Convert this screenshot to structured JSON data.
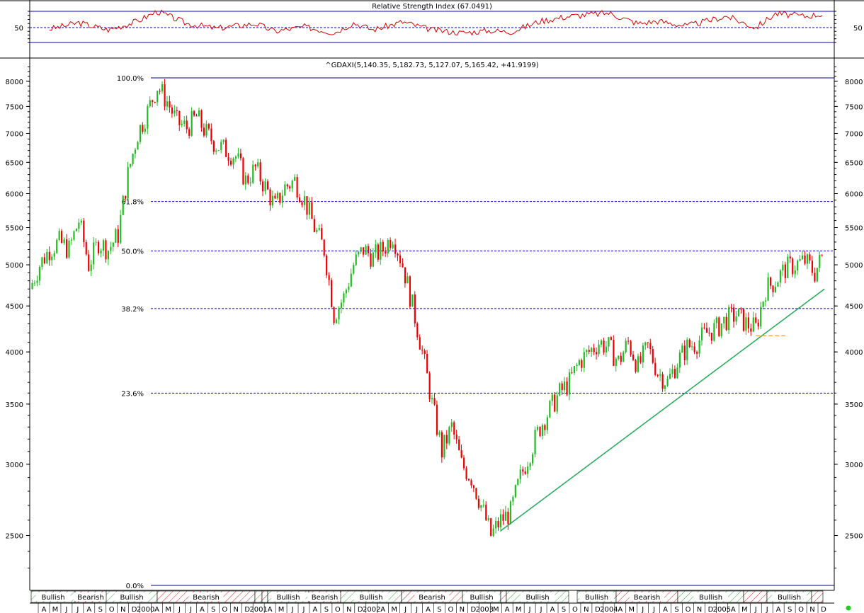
{
  "chart_data": [
    {
      "type": "line",
      "title": "Relative Strength Index (67.0491)",
      "y_tick_labels": [
        "50"
      ],
      "reference_levels": [
        70,
        50,
        30
      ],
      "colors": {
        "line": "#dd0000",
        "bands": "#0000cc",
        "mid": "#0000cc"
      },
      "x": [
        "1999-04",
        "1999-07",
        "1999-10",
        "2000-01",
        "2000-03",
        "2000-06",
        "2000-09",
        "2001-01",
        "2001-03",
        "2001-06",
        "2001-09",
        "2001-11",
        "2002-01",
        "2002-04",
        "2002-07",
        "2002-10",
        "2003-01",
        "2003-03",
        "2003-06",
        "2003-09",
        "2004-01",
        "2004-04",
        "2004-06",
        "2004-09",
        "2005-01",
        "2005-04",
        "2005-06",
        "2005-09",
        "2005-11"
      ],
      "values": [
        48,
        56,
        47,
        58,
        70,
        55,
        49,
        55,
        45,
        51,
        43,
        56,
        47,
        57,
        47,
        43,
        46,
        44,
        58,
        64,
        68,
        55,
        58,
        52,
        64,
        50,
        67,
        64,
        67
      ]
    },
    {
      "type": "line",
      "subtype": "candlestick",
      "title": "^GDAXI(5,140.35, 5,182.73, 5,127.07, 5,165.42, +41.9199)",
      "y_scale": "log",
      "ylim": [
        2200,
        8400
      ],
      "y_tick_labels": [
        "8000",
        "7500",
        "7000",
        "6500",
        "6000",
        "5500",
        "5000",
        "4500",
        "4000",
        "3500",
        "3000",
        "2500"
      ],
      "fibonacci_levels": [
        {
          "label": "100.0%",
          "value": 8070
        },
        {
          "label": "61.8%",
          "value": 5880
        },
        {
          "label": "50.0%",
          "value": 5180
        },
        {
          "label": "38.2%",
          "value": 4470
        },
        {
          "label": "23.6%",
          "value": 3600
        },
        {
          "label": "0.0%",
          "value": 2200
        }
      ],
      "colors": {
        "up": "#22bb22",
        "down": "#ee0000",
        "fib_line": "#0000cc",
        "trendline": "#22aa55",
        "support_dash": "#ff9933"
      },
      "trendline": [
        {
          "date": "2003-02",
          "value": 2530
        },
        {
          "date": "2005-11",
          "value": 4700
        }
      ],
      "support_dash": {
        "date_start": "2005-04",
        "date_end": "2005-07",
        "value": 4170
      },
      "series": [
        {
          "x": [
            "1999-02",
            "1999-03",
            "1999-04",
            "1999-05",
            "1999-06",
            "1999-07",
            "1999-08",
            "1999-09",
            "1999-10",
            "1999-11",
            "1999-12",
            "2000-01",
            "2000-02",
            "2000-03",
            "2000-04",
            "2000-05",
            "2000-06",
            "2000-07",
            "2000-08",
            "2000-09",
            "2000-10",
            "2000-11",
            "2000-12",
            "2001-01",
            "2001-02",
            "2001-03",
            "2001-04",
            "2001-05",
            "2001-06",
            "2001-07",
            "2001-08",
            "2001-09",
            "2001-10",
            "2001-11",
            "2001-12",
            "2002-01",
            "2002-02",
            "2002-03",
            "2002-04",
            "2002-05",
            "2002-06",
            "2002-07",
            "2002-08",
            "2002-09",
            "2002-10",
            "2002-11",
            "2002-12",
            "2003-01",
            "2003-02",
            "2003-03",
            "2003-04",
            "2003-05",
            "2003-06",
            "2003-07",
            "2003-08",
            "2003-09",
            "2003-10",
            "2003-11",
            "2003-12",
            "2004-01",
            "2004-02",
            "2004-03",
            "2004-04",
            "2004-05",
            "2004-06",
            "2004-07",
            "2004-08",
            "2004-09",
            "2004-10",
            "2004-11",
            "2004-12",
            "2005-01",
            "2005-02",
            "2005-03",
            "2005-04",
            "2005-05",
            "2005-06",
            "2005-07",
            "2005-08",
            "2005-09",
            "2005-10",
            "2005-11"
          ],
          "values": [
            4700,
            5000,
            5200,
            5300,
            5200,
            5600,
            5000,
            5300,
            5200,
            5400,
            6300,
            7000,
            7400,
            7900,
            7600,
            7200,
            7100,
            7300,
            7000,
            6800,
            6700,
            6600,
            6200,
            6400,
            6100,
            5800,
            6100,
            6200,
            5900,
            5500,
            5200,
            4400,
            4600,
            5000,
            5200,
            5100,
            5200,
            5400,
            5000,
            4500,
            4000,
            3500,
            3100,
            3300,
            3000,
            2900,
            2700,
            2500,
            2600,
            2650,
            2900,
            3100,
            3300,
            3450,
            3600,
            3700,
            3900,
            4000,
            4100,
            4050,
            3900,
            4100,
            3850,
            4050,
            3800,
            3700,
            3900,
            4050,
            4100,
            4200,
            4250,
            4350,
            4400,
            4300,
            4250,
            4700,
            4800,
            4950,
            5000,
            5050,
            4900,
            5165
          ]
        }
      ]
    }
  ],
  "bottom_axis": {
    "months": [
      "A",
      "M",
      "J",
      "J",
      "A",
      "S",
      "O",
      "N",
      "D",
      "2000",
      "A",
      "M",
      "J",
      "J",
      "A",
      "S",
      "O",
      "N",
      "D",
      "2001",
      "A",
      "M",
      "J",
      "J",
      "A",
      "S",
      "O",
      "N",
      "D",
      "2002",
      "A",
      "M",
      "J",
      "J",
      "A",
      "S",
      "O",
      "N",
      "D",
      "2003",
      "M",
      "A",
      "M",
      "J",
      "J",
      "A",
      "S",
      "O",
      "N",
      "D",
      "2004",
      "A",
      "M",
      "J",
      "J",
      "A",
      "S",
      "O",
      "N",
      "D",
      "2005",
      "A",
      "M",
      "J",
      "J",
      "A",
      "S",
      "O",
      "N",
      "D"
    ]
  },
  "sentiment_bands": [
    {
      "label": "Bullish",
      "kind": "bullish"
    },
    {
      "label": "Bearish",
      "kind": "bearish"
    },
    {
      "label": "Bullish",
      "kind": "bullish"
    },
    {
      "label": "Bearish",
      "kind": "bearish"
    },
    {
      "label": "",
      "kind": "bullish"
    },
    {
      "label": "",
      "kind": "bearish"
    },
    {
      "label": "Bullish",
      "kind": "bullish"
    },
    {
      "label": "Bearish",
      "kind": "bearish"
    },
    {
      "label": "Bullish",
      "kind": "bullish"
    },
    {
      "label": "Bearish",
      "kind": "bearish"
    },
    {
      "label": "Bullish",
      "kind": "bullish"
    },
    {
      "label": "",
      "kind": "bearish"
    },
    {
      "label": "Bullish",
      "kind": "bullish"
    },
    {
      "label": "Bullish",
      "kind": "bullish"
    },
    {
      "label": "Bearish",
      "kind": "bearish"
    },
    {
      "label": "Bullish",
      "kind": "bullish"
    },
    {
      "label": "",
      "kind": "bearish"
    },
    {
      "label": "Bullish",
      "kind": "bullish"
    },
    {
      "label": "",
      "kind": "bearish"
    }
  ],
  "status_indicator_color": "#22cc22"
}
